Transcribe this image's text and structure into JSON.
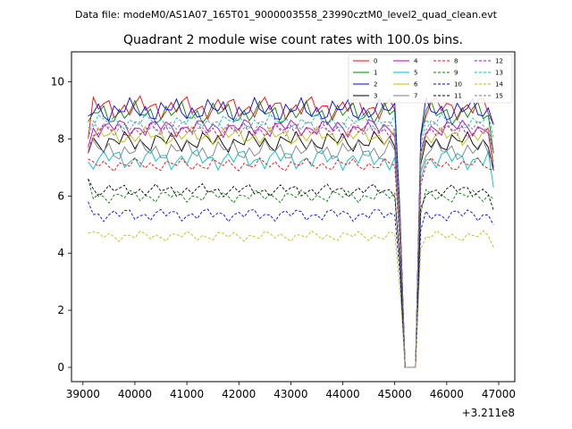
{
  "suptitle": "Data file: modeM0/AS1A07_165T01_9000003558_23990cztM0_level2_quad_clean.evt",
  "chart_data": {
    "type": "line",
    "title": "Quadrant 2 module wise count rates with 100.0s bins.",
    "xlabel": "",
    "ylabel": "",
    "x_offset_label": "+3.211e8",
    "xlim": [
      38780,
      47310
    ],
    "ylim": [
      -0.5,
      11.05
    ],
    "x_ticks": [
      39000,
      40000,
      41000,
      42000,
      43000,
      44000,
      45000,
      46000,
      47000
    ],
    "y_ticks": [
      0,
      2,
      4,
      6,
      8,
      10
    ],
    "x_start": 39100,
    "x_step": 100,
    "gap": {
      "drop_start": 45100,
      "zero_start": 45200,
      "zero_end": 45400,
      "recover": 45500
    },
    "legend_location": "upper-right",
    "series": [
      {
        "name": "0",
        "color": "#ff0000",
        "dash": "solid",
        "level": 9.1,
        "amp": 0.45,
        "end": 8.5,
        "start": 8.0
      },
      {
        "name": "1",
        "color": "#008000",
        "dash": "solid",
        "level": 8.9,
        "amp": 0.45,
        "end": 7.5,
        "start": 8.6
      },
      {
        "name": "2",
        "color": "#0000ff",
        "dash": "solid",
        "level": 9.0,
        "amp": 0.45,
        "end": 8.5,
        "start": 8.8
      },
      {
        "name": "3",
        "color": "#000000",
        "dash": "solid",
        "level": 7.9,
        "amp": 0.4,
        "end": 6.9,
        "start": 7.5
      },
      {
        "name": "4",
        "color": "#bf00bf",
        "dash": "solid",
        "level": 8.4,
        "amp": 0.35,
        "end": 7.0,
        "start": 7.7
      },
      {
        "name": "5",
        "color": "#00bfbf",
        "dash": "solid",
        "level": 7.3,
        "amp": 0.4,
        "end": 6.3,
        "start": 7.2
      },
      {
        "name": "6",
        "color": "#bfbf00",
        "dash": "solid",
        "level": 8.1,
        "amp": 0.35,
        "end": 7.2,
        "start": 7.6
      },
      {
        "name": "7",
        "color": "#808080",
        "dash": "solid",
        "level": 7.6,
        "amp": 0.4,
        "end": 7.1,
        "start": 7.8
      },
      {
        "name": "8",
        "color": "#ff0000",
        "dash": "dashed",
        "level": 7.1,
        "amp": 0.25,
        "end": 6.9,
        "start": 7.3
      },
      {
        "name": "9",
        "color": "#008000",
        "dash": "dashed",
        "level": 6.0,
        "amp": 0.25,
        "end": 5.9,
        "start": 6.6
      },
      {
        "name": "10",
        "color": "#0000ff",
        "dash": "dashed",
        "level": 5.35,
        "amp": 0.25,
        "end": 5.0,
        "start": 5.8
      },
      {
        "name": "11",
        "color": "#000000",
        "dash": "dashed",
        "level": 6.2,
        "amp": 0.25,
        "end": 5.5,
        "start": 6.6
      },
      {
        "name": "12",
        "color": "#bf00bf",
        "dash": "dashed",
        "level": 8.3,
        "amp": 0.3,
        "end": 7.5,
        "start": 7.5
      },
      {
        "name": "13",
        "color": "#00bfbf",
        "dash": "dashed",
        "level": 8.6,
        "amp": 0.3,
        "end": 8.0,
        "start": 8.4
      },
      {
        "name": "14",
        "color": "#bfbf00",
        "dash": "dashed",
        "level": 4.6,
        "amp": 0.2,
        "end": 4.2,
        "start": 4.7
      },
      {
        "name": "15",
        "color": "#808080",
        "dash": "dashed",
        "level": 8.4,
        "amp": 0.3,
        "end": 7.6,
        "start": 8.0
      }
    ]
  }
}
